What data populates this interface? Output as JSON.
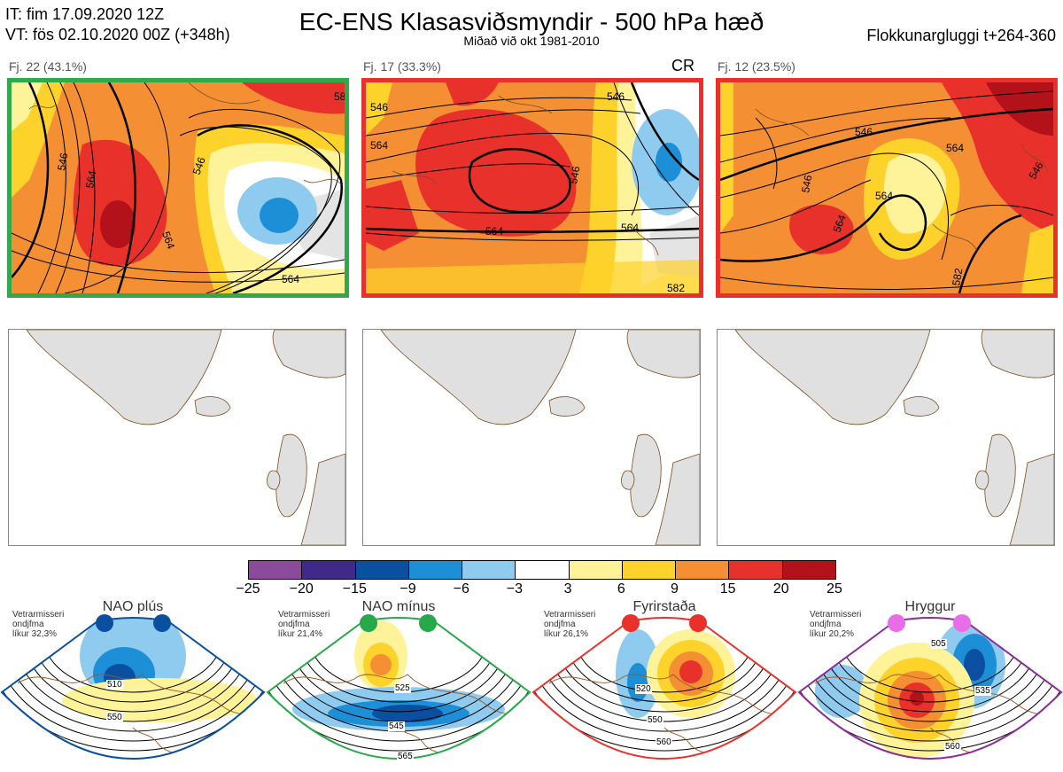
{
  "header": {
    "it": "IT: fim 17.09.2020 12Z",
    "vt": "VT: fös 02.10.2020 00Z  (+348h)",
    "title": "EC-ENS Klasasviðsmyndir - 500 hPa hæð",
    "subtitle": "Miðað við okt 1981-2010",
    "window": "Flokkunargluggi t+264-360"
  },
  "panels": [
    {
      "label": "Fj. 22 (43.1%)",
      "border_color": "#2eaa4a",
      "contours": [
        "546",
        "564",
        "546",
        "564",
        "564",
        "58"
      ]
    },
    {
      "label": "Fj. 17 (33.3%)",
      "border_color": "#e8312a",
      "tag": "CR",
      "contours": [
        "546",
        "564",
        "546",
        "564",
        "546",
        "564",
        "582"
      ]
    },
    {
      "label": "Fj. 12 (23.5%)",
      "border_color": "#e8312a",
      "contours": [
        "546",
        "564",
        "546",
        "564",
        "564",
        "582",
        "546"
      ]
    }
  ],
  "colorbar": {
    "colors": [
      "#8c4a9c",
      "#3f2a8a",
      "#0b4fa0",
      "#1c8fd6",
      "#8fcbee",
      "#ffffff",
      "#fff39a",
      "#fdd22a",
      "#f48f34",
      "#e8312a",
      "#b3121a"
    ],
    "ticks": [
      "−25",
      "−20",
      "−15",
      "−9",
      "−6",
      "−3",
      "3",
      "6",
      "9",
      "15",
      "20",
      "25"
    ]
  },
  "regimes": [
    {
      "name": "NAO plús",
      "desc": [
        "Vetrarmisseri",
        "ondjfma",
        "líkur 32,3%"
      ],
      "color": "#0b4fa0",
      "contours": [
        "510",
        "550"
      ]
    },
    {
      "name": "NAO mínus",
      "desc": [
        "Vetrarmisseri",
        "ondjfma",
        "líkur 21,4%"
      ],
      "color": "#27a94b",
      "contours": [
        "525",
        "545",
        "565"
      ]
    },
    {
      "name": "Fyrirstaða",
      "desc": [
        "Vetrarmisseri",
        "ondjfma",
        "líkur 26,1%"
      ],
      "color": "#e8312a",
      "contours": [
        "520",
        "550",
        "560"
      ]
    },
    {
      "name": "Hryggur",
      "desc": [
        "Vetrarmisseri",
        "ondjfma",
        "líkur 20,2%"
      ],
      "color": "#8b2d96",
      "contours": [
        "505",
        "535",
        "560"
      ]
    }
  ]
}
